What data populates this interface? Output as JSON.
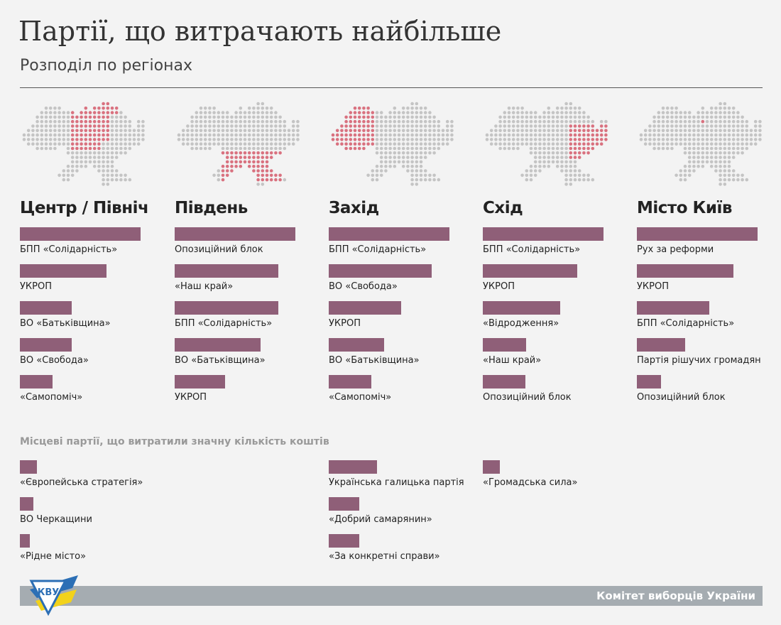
{
  "title": "Партії, що витрачають найбільше",
  "subtitle": "Розподіл по регіонах",
  "colors": {
    "bar": "#8f5f78",
    "highlight": "#d9717f",
    "dot": "#c4c4c4"
  },
  "chart_data": {
    "type": "bar",
    "orientation": "horizontal",
    "value_units": "relative length, % of longest bar",
    "panels": [
      {
        "region": "Центр / Північ",
        "map_highlight": "center",
        "categories": [
          "БПП «Солідарність»",
          "УКРОП",
          "ВО «Батьківщина»",
          "ВО «Свобода»",
          "«Самопоміч»"
        ],
        "values": [
          100,
          72,
          43,
          43,
          27
        ]
      },
      {
        "region": "Південь",
        "map_highlight": "south",
        "categories": [
          "Опозиційний блок",
          "«Наш край»",
          "БПП «Солідарність»",
          "ВО «Батьківщина»",
          "УКРОП"
        ],
        "values": [
          100,
          86,
          86,
          71,
          42
        ]
      },
      {
        "region": "Захід",
        "map_highlight": "west",
        "categories": [
          "БПП «Солідарність»",
          "ВО «Свобода»",
          "УКРОП",
          "ВО «Батьківщина»",
          "«Самопоміч»"
        ],
        "values": [
          100,
          85,
          60,
          46,
          35
        ]
      },
      {
        "region": "Схід",
        "map_highlight": "east",
        "categories": [
          "БПП «Солідарність»",
          "УКРОП",
          "«Відродження»",
          "«Наш край»",
          "Опозиційний блок"
        ],
        "values": [
          100,
          78,
          64,
          36,
          35
        ]
      },
      {
        "region": "Місто Київ",
        "map_highlight": "kyiv",
        "categories": [
          "Рух за реформи",
          "УКРОП",
          "БПП «Солідарність»",
          "Партія рішучих громадян",
          "Опозиційний блок"
        ],
        "values": [
          100,
          80,
          60,
          40,
          20
        ]
      }
    ],
    "local": {
      "title": "Місцеві партії, що витратили значну кількість коштів",
      "groups": [
        {
          "region": "Центр / Північ",
          "categories": [
            "«Європейська стратегія»",
            "ВО Черкащини",
            "«Рідне місто»"
          ],
          "values": [
            14,
            11,
            8
          ]
        },
        {
          "region": "Захід",
          "categories": [
            "Українська галицька партія",
            "«Добрий самарянин»",
            "«За конкретні справи»"
          ],
          "values": [
            40,
            25,
            25
          ]
        },
        {
          "region": "Схід",
          "categories": [
            "«Громадська сила»"
          ],
          "values": [
            14
          ]
        }
      ]
    }
  },
  "footer": {
    "org": "Комітет виборців України",
    "logo_text": "КВУ"
  }
}
